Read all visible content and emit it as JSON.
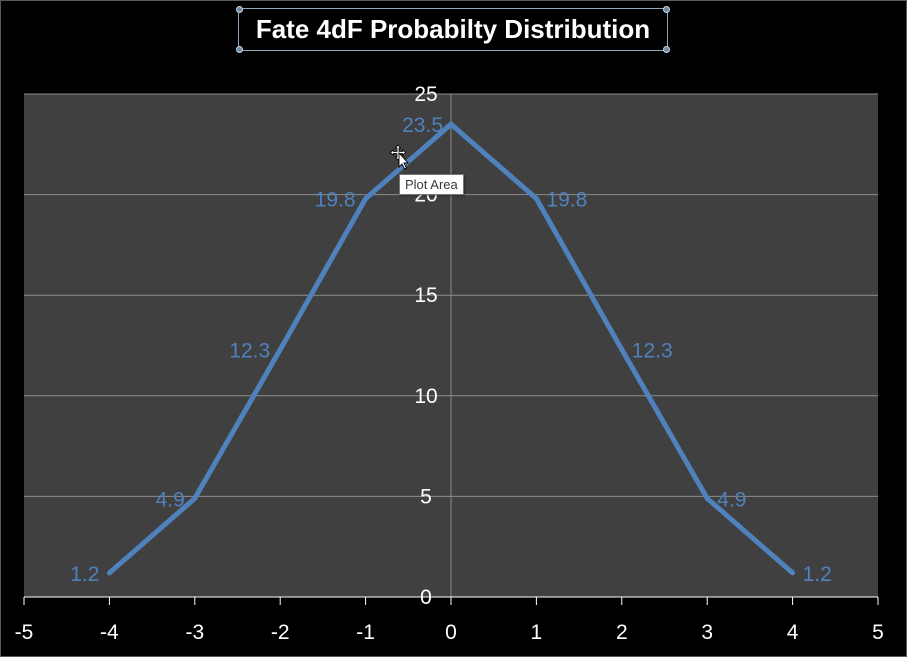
{
  "chart_data": {
    "type": "line",
    "title": "Fate 4dF Probabilty Distribution",
    "xlabel": "",
    "ylabel": "",
    "xlim": [
      -5,
      5
    ],
    "ylim": [
      0,
      25
    ],
    "x_ticks": [
      -5,
      -4,
      -3,
      -2,
      -1,
      0,
      1,
      2,
      3,
      4,
      5
    ],
    "y_ticks": [
      0,
      5,
      10,
      15,
      20,
      25
    ],
    "grid": true,
    "series": [
      {
        "x": [
          -4,
          -3,
          -2,
          -1,
          0,
          1,
          2,
          3,
          4
        ],
        "values": [
          1.2,
          4.9,
          12.3,
          19.8,
          23.5,
          19.8,
          12.3,
          4.9,
          1.2
        ],
        "color": "#4f81bd"
      }
    ]
  },
  "tooltip": {
    "text": "Plot Area"
  },
  "colors": {
    "plot_area": "#404040",
    "background": "#000000",
    "gridline": "#8c8c8c",
    "line": "#4f81bd"
  }
}
